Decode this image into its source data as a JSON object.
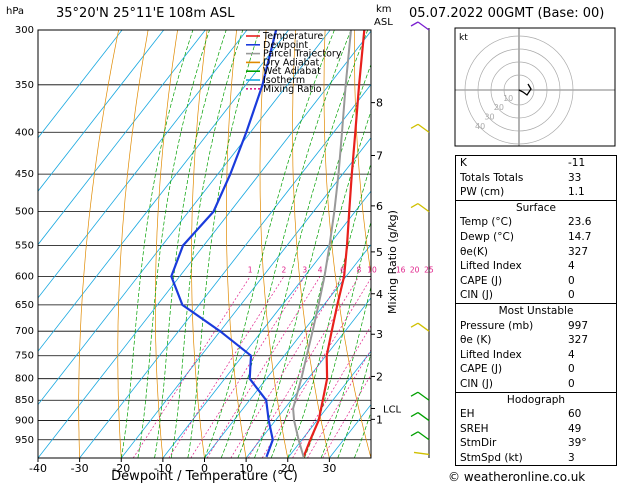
{
  "header": {
    "location": "35°20'N  25°11'E  108m  ASL",
    "datetime": "05.07.2022  00GMT  (Base: 00)",
    "hpa_label": "hPa",
    "km_label": "km",
    "asl_label": "ASL",
    "copyright": "© weatheronline.co.uk"
  },
  "legend": [
    {
      "label": "Temperature",
      "color": "#e8201c",
      "dash": ""
    },
    {
      "label": "Dewpoint",
      "color": "#1a3bdc",
      "dash": ""
    },
    {
      "label": "Parcel Trajectory",
      "color": "#999999",
      "dash": ""
    },
    {
      "label": "Dry Adiabat",
      "color": "#e08a00",
      "dash": ""
    },
    {
      "label": "Wet Adiabat",
      "color": "#00a000",
      "dash": ""
    },
    {
      "label": "Isotherm",
      "color": "#18a8e0",
      "dash": ""
    },
    {
      "label": "Mixing Ratio",
      "color": "#e0208a",
      "dash": "2,2"
    }
  ],
  "hodograph": {
    "label": "kt",
    "ring_labels": [
      "10",
      "20",
      "30",
      "40"
    ]
  },
  "chart_data": {
    "type": "line",
    "title": "",
    "xlabel": "Dewpoint / Temperature (°C)",
    "ylabel": "Mixing Ratio (g/kg)",
    "xlim": [
      -40,
      40
    ],
    "x_ticks": [
      -40,
      -30,
      -20,
      -10,
      0,
      10,
      20,
      30
    ],
    "pressure_levels": [
      300,
      350,
      400,
      450,
      500,
      550,
      600,
      650,
      700,
      750,
      800,
      850,
      900,
      950
    ],
    "km_ticks": [
      {
        "km": "8",
        "p": 368
      },
      {
        "km": "7",
        "p": 427
      },
      {
        "km": "6",
        "p": 492
      },
      {
        "km": "5",
        "p": 560
      },
      {
        "km": "4",
        "p": 630
      },
      {
        "km": "3",
        "p": 706
      },
      {
        "km": "2",
        "p": 795
      },
      {
        "km": "1",
        "p": 897
      }
    ],
    "lcl": {
      "label": "LCL",
      "p": 870
    },
    "mixing_ratio_labels": [
      "1",
      "2",
      "3",
      "4",
      "6",
      "8",
      "10",
      "16",
      "20",
      "25"
    ],
    "series": [
      {
        "name": "Temperature",
        "points": [
          [
            997,
            23.6
          ],
          [
            950,
            22
          ],
          [
            900,
            20.4
          ],
          [
            850,
            17.6
          ],
          [
            800,
            14.6
          ],
          [
            750,
            10.2
          ],
          [
            700,
            6.8
          ],
          [
            650,
            3.2
          ],
          [
            600,
            -0.5
          ],
          [
            550,
            -5.6
          ],
          [
            500,
            -11.4
          ],
          [
            450,
            -17.8
          ],
          [
            400,
            -24.8
          ],
          [
            350,
            -32.8
          ],
          [
            300,
            -41.8
          ]
        ]
      },
      {
        "name": "Dewpoint",
        "points": [
          [
            997,
            14.7
          ],
          [
            950,
            13
          ],
          [
            900,
            8.4
          ],
          [
            850,
            4
          ],
          [
            800,
            -4
          ],
          [
            750,
            -8
          ],
          [
            700,
            -20
          ],
          [
            650,
            -34
          ],
          [
            600,
            -42
          ],
          [
            550,
            -45
          ],
          [
            500,
            -44
          ],
          [
            450,
            -47
          ],
          [
            400,
            -51
          ],
          [
            350,
            -56
          ],
          [
            300,
            -63
          ]
        ]
      },
      {
        "name": "Parcel Trajectory",
        "points": [
          [
            997,
            23.6
          ],
          [
            950,
            19.2
          ],
          [
            900,
            14.5
          ],
          [
            870,
            12.0
          ],
          [
            850,
            11
          ],
          [
            800,
            8.4
          ],
          [
            750,
            5.4
          ],
          [
            700,
            2.2
          ],
          [
            650,
            -1.3
          ],
          [
            600,
            -5.2
          ],
          [
            550,
            -9.8
          ],
          [
            500,
            -15
          ],
          [
            450,
            -21
          ],
          [
            400,
            -28
          ],
          [
            350,
            -36
          ],
          [
            300,
            -45
          ]
        ]
      }
    ]
  },
  "stats": {
    "top": [
      {
        "label": "K",
        "value": "-11"
      },
      {
        "label": "Totals Totals",
        "value": "33"
      },
      {
        "label": "PW (cm)",
        "value": "1.1"
      }
    ],
    "surface": {
      "title": "Surface",
      "rows": [
        {
          "label": "Temp (°C)",
          "value": "23.6"
        },
        {
          "label": "Dewp (°C)",
          "value": "14.7"
        },
        {
          "label": "θe(K)",
          "value": "327"
        },
        {
          "label": "Lifted Index",
          "value": "4"
        },
        {
          "label": "CAPE (J)",
          "value": "0"
        },
        {
          "label": "CIN (J)",
          "value": "0"
        }
      ]
    },
    "most_unstable": {
      "title": "Most Unstable",
      "rows": [
        {
          "label": "Pressure (mb)",
          "value": "997"
        },
        {
          "label": "θe (K)",
          "value": "327"
        },
        {
          "label": "Lifted Index",
          "value": "4"
        },
        {
          "label": "CAPE (J)",
          "value": "0"
        },
        {
          "label": "CIN (J)",
          "value": "0"
        }
      ]
    },
    "hodograph": {
      "title": "Hodograph",
      "rows": [
        {
          "label": "EH",
          "value": "60"
        },
        {
          "label": "SREH",
          "value": "49"
        },
        {
          "label": "StmDir",
          "value": "39°"
        },
        {
          "label": "StmSpd (kt)",
          "value": "3"
        }
      ]
    }
  }
}
